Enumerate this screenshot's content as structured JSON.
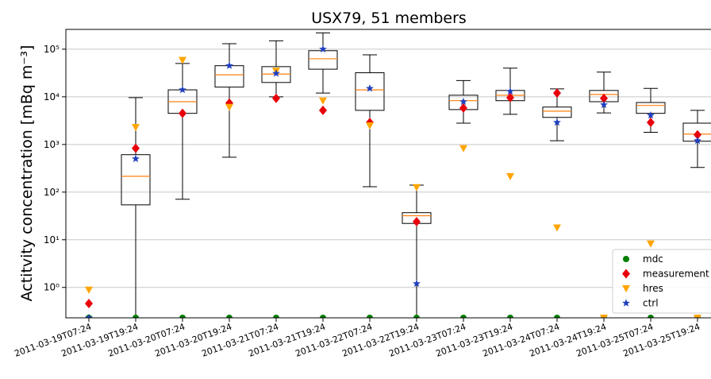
{
  "chart_data": {
    "type": "boxplot",
    "title": "USX79, 51 members",
    "ylabel": "Actitvity concentration [mBq m⁻³]",
    "categories": [
      "2011-03-19T07:24",
      "2011-03-19T19:24",
      "2011-03-20T07:24",
      "2011-03-20T19:24",
      "2011-03-21T07:24",
      "2011-03-21T19:24",
      "2011-03-22T07:24",
      "2011-03-22T19:24",
      "2011-03-23T07:24",
      "2011-03-23T19:24",
      "2011-03-24T07:24",
      "2011-03-24T19:24",
      "2011-03-25T07:24",
      "2011-03-25T19:24"
    ],
    "yscale": "log",
    "ylim": [
      0.23,
      260000
    ],
    "yticks": [
      {
        "value": 1,
        "label": "10⁰"
      },
      {
        "value": 10,
        "label": "10¹"
      },
      {
        "value": 100,
        "label": "10²"
      },
      {
        "value": 1000,
        "label": "10³"
      },
      {
        "value": 10000,
        "label": "10⁴"
      },
      {
        "value": 100000,
        "label": "10⁵"
      }
    ],
    "grid": true,
    "legend": "lower right",
    "box_color": "#000000",
    "median_color": "#ff7f0e",
    "boxes": {
      "whislo": [
        null,
        0.23,
        71,
        540,
        10000,
        12000,
        130,
        0.23,
        2800,
        4300,
        1200,
        4600,
        1800,
        330
      ],
      "q1": [
        null,
        54,
        4500,
        16000,
        20000,
        38000,
        5200,
        22,
        5400,
        8300,
        3700,
        7900,
        4500,
        1170
      ],
      "median": [
        null,
        215,
        7900,
        29000,
        30000,
        63000,
        14000,
        32,
        8300,
        10800,
        5000,
        11200,
        6600,
        1650
      ],
      "q3": [
        null,
        610,
        14000,
        45000,
        43000,
        93000,
        32000,
        37,
        10800,
        13600,
        6100,
        13600,
        7600,
        2800
      ],
      "whishi": [
        null,
        9600,
        50000,
        130000,
        150000,
        220000,
        76000,
        140,
        22000,
        40000,
        14700,
        33000,
        15000,
        5200
      ]
    },
    "series": [
      {
        "name": "mdc",
        "color": "#008000",
        "marker": "circle",
        "values": [
          0.23,
          0.23,
          0.23,
          0.23,
          0.23,
          0.23,
          0.23,
          0.23,
          0.23,
          0.23,
          0.23,
          0.23,
          0.23,
          0.23
        ]
      },
      {
        "name": "measurement",
        "color": "#e8000b",
        "marker": "diamond",
        "values": [
          0.46,
          830,
          4500,
          7400,
          9300,
          5200,
          2900,
          24,
          5800,
          9600,
          12000,
          9300,
          2900,
          1600
        ]
      },
      {
        "name": "hres",
        "color": "#ffa500",
        "marker": "triangle-down",
        "values": [
          0.89,
          2300,
          59000,
          6100,
          35000,
          8300,
          2500,
          126,
          830,
          215,
          18,
          0.23,
          8.3,
          0.23
        ]
      },
      {
        "name": "ctrl",
        "color": "#1f3fbf",
        "marker": "star",
        "values": [
          0.23,
          500,
          14000,
          45000,
          31000,
          100000,
          15000,
          1.2,
          7900,
          13000,
          2900,
          6800,
          4100,
          1200
        ]
      }
    ]
  }
}
